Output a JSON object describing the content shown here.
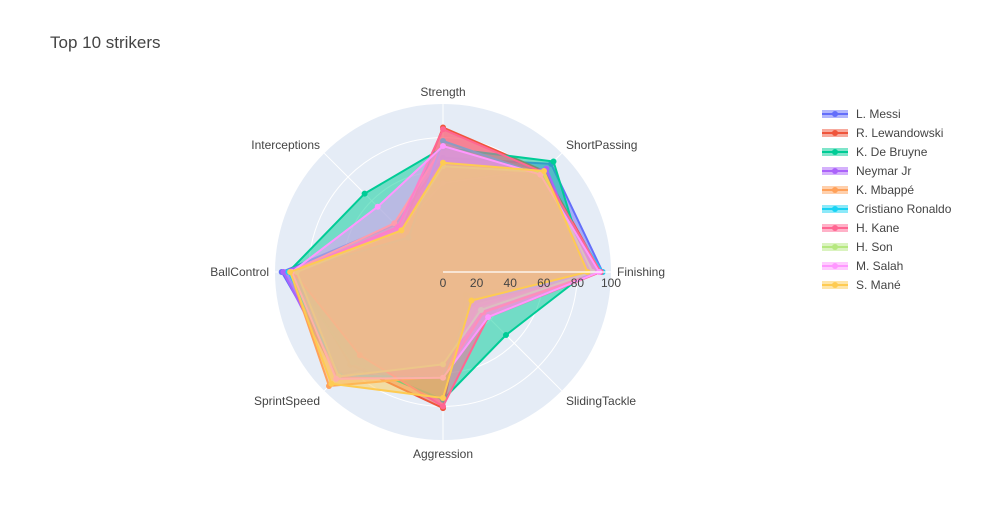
{
  "chart_data": {
    "type": "radar",
    "title": "Top 10 strikers",
    "axes": [
      "Finishing",
      "ShortPassing",
      "Strength",
      "Interceptions",
      "BallControl",
      "SprintSpeed",
      "Aggression",
      "SlidingTackle"
    ],
    "radial_range": [
      0,
      100
    ],
    "radial_ticks": [
      "0",
      "20",
      "40",
      "60",
      "80",
      "100"
    ],
    "legend_position": "right",
    "series": [
      {
        "name": "L. Messi",
        "color": "#636efa",
        "values": [
          95,
          91,
          68,
          40,
          96,
          86,
          48,
          26
        ]
      },
      {
        "name": "R. Lewandowski",
        "color": "#ef553b",
        "values": [
          94,
          85,
          86,
          35,
          88,
          78,
          81,
          19
        ]
      },
      {
        "name": "K. De Bruyne",
        "color": "#00cc96",
        "values": [
          86,
          93,
          74,
          66,
          92,
          76,
          76,
          53
        ]
      },
      {
        "name": "Neymar Jr",
        "color": "#ab63fa",
        "values": [
          87,
          87,
          53,
          36,
          95,
          89,
          63,
          29
        ]
      },
      {
        "name": "K. Mbappé",
        "color": "#ffa15a",
        "values": [
          93,
          83,
          75,
          41,
          91,
          96,
          62,
          34
        ]
      },
      {
        "name": "Cristiano Ronaldo",
        "color": "#19d3f3",
        "values": [
          95,
          82,
          78,
          29,
          92,
          87,
          63,
          24
        ]
      },
      {
        "name": "H. Kane",
        "color": "#ff6692",
        "values": [
          94,
          84,
          85,
          38,
          89,
          70,
          80,
          38
        ]
      },
      {
        "name": "H. Son",
        "color": "#b6e880",
        "values": [
          89,
          84,
          63,
          35,
          87,
          88,
          55,
          32
        ]
      },
      {
        "name": "M. Salah",
        "color": "#ff97ff",
        "values": [
          93,
          82,
          75,
          55,
          90,
          90,
          63,
          38
        ]
      },
      {
        "name": "S. Mané",
        "color": "#fecb52",
        "values": [
          86,
          85,
          65,
          35,
          91,
          94,
          75,
          24
        ]
      }
    ]
  }
}
